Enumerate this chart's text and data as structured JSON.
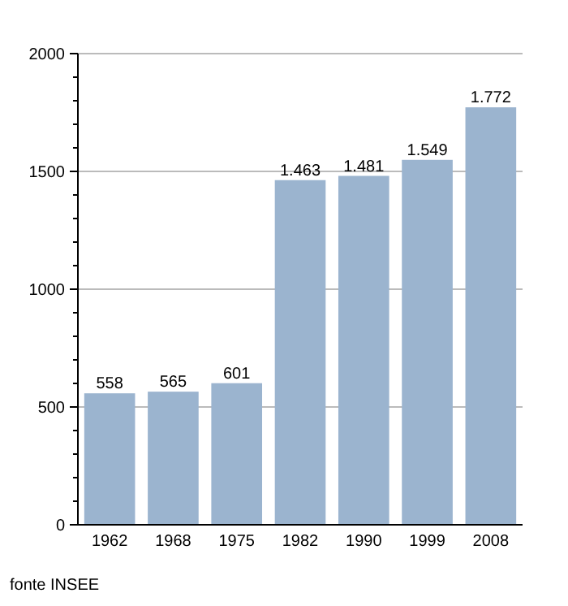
{
  "chart_data": {
    "type": "bar",
    "categories": [
      "1962",
      "1968",
      "1975",
      "1982",
      "1990",
      "1999",
      "2008"
    ],
    "values": [
      558,
      565,
      601,
      1463,
      1481,
      1549,
      1772
    ],
    "value_labels": [
      "558",
      "565",
      "601",
      "1.463",
      "1.481",
      "1.549",
      "1.772"
    ],
    "color": "#9bb4cf",
    "ylim": [
      0,
      2000
    ],
    "yticks": [
      0,
      {
        "value": 100,
        "label": null
      },
      {
        "value": 200,
        "label": null
      },
      {
        "value": 300,
        "label": null
      },
      {
        "value": 400,
        "label": null
      },
      500,
      {
        "value": 600,
        "label": null
      },
      {
        "value": 700,
        "label": null
      },
      {
        "value": 800,
        "label": null
      },
      {
        "value": 900,
        "label": null
      },
      1000,
      {
        "value": 1100,
        "label": null
      },
      {
        "value": 1200,
        "label": null
      },
      {
        "value": 1300,
        "label": null
      },
      {
        "value": 1400,
        "label": null
      },
      1500,
      {
        "value": 1600,
        "label": null
      },
      {
        "value": 1700,
        "label": null
      },
      {
        "value": 1800,
        "label": null
      },
      {
        "value": 1900,
        "label": null
      },
      2000
    ],
    "grid": "y",
    "annotations": [
      "fonte INSEE"
    ]
  }
}
